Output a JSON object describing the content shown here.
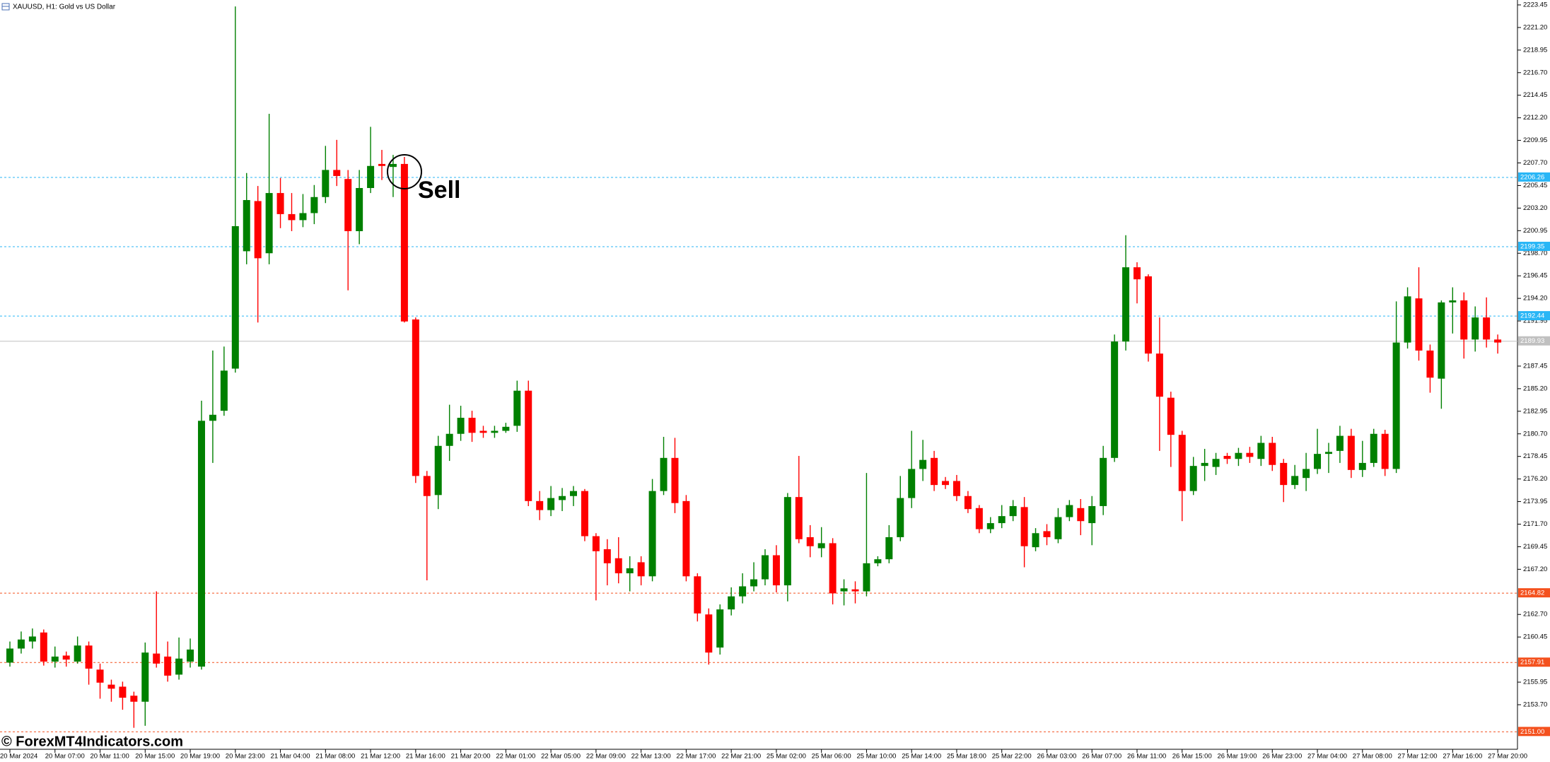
{
  "chart_data": {
    "type": "candlestick",
    "title": "XAUUSD, H1:  Gold vs US Dollar",
    "annotation": "Sell",
    "watermark": "© ForexMT4Indicators.com",
    "up_color": "#008000",
    "down_color": "#ff0000",
    "ylim": [
      2149.26,
      2223.94
    ],
    "yticks": [
      2223.45,
      {
        "value": 2221.2,
        "label": "2221.20"
      },
      2218.95,
      {
        "value": 2216.7,
        "label": "2216.70"
      },
      2214.45,
      {
        "value": 2212.2,
        "label": "2212.20"
      },
      2209.95,
      {
        "value": 2207.7,
        "label": "2207.70"
      },
      2205.45,
      {
        "value": 2203.2,
        "label": "2203.20"
      },
      2200.95,
      {
        "value": 2198.7,
        "label": "2198.70"
      },
      2196.45,
      {
        "value": 2194.2,
        "label": "2194.20"
      },
      2191.95,
      2187.45,
      {
        "value": 2185.2,
        "label": "2185.20"
      },
      2182.95,
      {
        "value": 2180.7,
        "label": "2180.70"
      },
      2178.45,
      {
        "value": 2176.2,
        "label": "2176.20"
      },
      2173.95,
      {
        "value": 2171.7,
        "label": "2171.70"
      },
      2169.45,
      {
        "value": 2167.2,
        "label": "2167.20"
      },
      {
        "value": 2162.7,
        "label": "2162.70"
      },
      2160.45,
      2155.95,
      {
        "value": 2153.7,
        "label": "2153.70"
      }
    ],
    "levels": [
      {
        "value": 2206.26,
        "color": "#29b6f6",
        "dashed": true
      },
      {
        "value": 2199.35,
        "color": "#29b6f6",
        "dashed": true
      },
      {
        "value": 2192.44,
        "color": "#29b6f6",
        "dashed": true
      },
      {
        "value": 2189.93,
        "color": "#c0c0c0",
        "dashed": false
      },
      {
        "value": 2164.82,
        "color": "#f4511e",
        "dashed": true
      },
      {
        "value": 2157.91,
        "color": "#f4511e",
        "dashed": true
      },
      {
        "value": 2151,
        "label": "2151.00",
        "color": "#f4511e",
        "dashed": true
      }
    ],
    "categories": [
      "20 Mar 2024",
      null,
      null,
      null,
      "20 Mar 07:00",
      null,
      null,
      null,
      "20 Mar 11:00",
      null,
      null,
      null,
      "20 Mar 15:00",
      null,
      null,
      null,
      "20 Mar 19:00",
      null,
      null,
      null,
      "20 Mar 23:00",
      null,
      null,
      null,
      "21 Mar 04:00",
      null,
      null,
      null,
      "21 Mar 08:00",
      null,
      null,
      null,
      "21 Mar 12:00",
      null,
      null,
      null,
      "21 Mar 16:00",
      null,
      null,
      null,
      "21 Mar 20:00",
      null,
      null,
      null,
      "22 Mar 01:00",
      null,
      null,
      null,
      "22 Mar 05:00",
      null,
      null,
      null,
      "22 Mar 09:00",
      null,
      null,
      null,
      "22 Mar 13:00",
      null,
      null,
      null,
      "22 Mar 17:00",
      null,
      null,
      null,
      "22 Mar 21:00",
      null,
      null,
      null,
      "25 Mar 02:00",
      null,
      null,
      null,
      "25 Mar 06:00",
      null,
      null,
      null,
      "25 Mar 10:00",
      null,
      null,
      null,
      "25 Mar 14:00",
      null,
      null,
      null,
      "25 Mar 18:00",
      null,
      null,
      null,
      "25 Mar 22:00",
      null,
      null,
      null,
      "26 Mar 03:00",
      null,
      null,
      null,
      "26 Mar 07:00",
      null,
      null,
      null,
      "26 Mar 11:00",
      null,
      null,
      null,
      "26 Mar 15:00",
      null,
      null,
      null,
      "26 Mar 19:00",
      null,
      null,
      null,
      "26 Mar 23:00",
      null,
      null,
      null,
      "27 Mar 04:00",
      null,
      null,
      null,
      "27 Mar 08:00",
      null,
      null,
      null,
      "27 Mar 12:00",
      null,
      null,
      null,
      "27 Mar 16:00",
      null,
      null,
      null,
      "27 Mar 20:00"
    ],
    "open": [
      2157.9,
      2159.3,
      2160,
      2160.9,
      2158,
      2158.6,
      2158,
      2159.6,
      2157.2,
      2155.7,
      2155.5,
      2154.6,
      2154,
      2158.8,
      2158.5,
      2156.7,
      2158,
      2157.5,
      2182,
      2183,
      2187.2,
      2198.9,
      2203.9,
      2198.7,
      2204.7,
      2202.6,
      2202,
      2202.7,
      2204.3,
      2207,
      2206.1,
      2200.9,
      2205.2,
      2207.6,
      2207.3,
      2207.6,
      2192.1,
      2176.5,
      2174.6,
      2179.5,
      2180.7,
      2182.3,
      2181,
      2180.8,
      2181,
      2181.5,
      2185,
      2174,
      2173.1,
      2174.1,
      2174.5,
      2175,
      2170.5,
      2169.2,
      2168.3,
      2166.8,
      2167.9,
      2166.5,
      2175,
      2178.3,
      2174,
      2166.5,
      2162.7,
      2159.4,
      2163.2,
      2164.5,
      2165.5,
      2166.2,
      2168.6,
      2165.6,
      2174.4,
      2170.4,
      2169.3,
      2169.8,
      2165,
      2165.2,
      2165,
      2167.8,
      2168.2,
      2170.4,
      2174.3,
      2177.2,
      2178.3,
      2176,
      2176,
      2174.5,
      2173.3,
      2171.2,
      2171.8,
      2172.5,
      2173.4,
      2169.4,
      2171,
      2170.2,
      2172.4,
      2173.3,
      2171.8,
      2173.5,
      2178.3,
      2189.9,
      2197.3,
      2196.4,
      2188.7,
      2184.3,
      2180.6,
      2175,
      2177.5,
      2177.4,
      2178.5,
      2178.2,
      2178.8,
      2178.2,
      2179.8,
      2177.8,
      2175.6,
      2176.3,
      2177.2,
      2178.7,
      2179,
      2180.5,
      2177.1,
      2177.8,
      2180.7,
      2177.2,
      2189.8,
      2194.2,
      2189,
      2186.2,
      2193.8,
      2194,
      2190.1,
      2192.3,
      2190.1
    ],
    "high": [
      2160,
      2161,
      2161.3,
      2161.2,
      2159.5,
      2159,
      2160.5,
      2160,
      2157.8,
      2156.2,
      2156,
      2155,
      2159.9,
      2165,
      2160,
      2160.4,
      2160.3,
      2184,
      2189,
      2189.4,
      2223.3,
      2206.7,
      2205.4,
      2212.6,
      2206.2,
      2204.7,
      2204.6,
      2205.5,
      2209.4,
      2210,
      2207,
      2207,
      2211.3,
      2209,
      2208.5,
      2208.3,
      2192.3,
      2177,
      2180.5,
      2183.6,
      2183.5,
      2183,
      2181.5,
      2181.5,
      2181.8,
      2186,
      2186,
      2175,
      2175.5,
      2175.3,
      2175.5,
      2175.2,
      2170.8,
      2170.2,
      2170.4,
      2168.5,
      2168.5,
      2176.2,
      2180.4,
      2180.3,
      2174.6,
      2166.8,
      2163.3,
      2163.7,
      2165.4,
      2166.8,
      2167.9,
      2169.2,
      2169.6,
      2174.8,
      2178.5,
      2171.6,
      2171.4,
      2170.3,
      2166.2,
      2166,
      2176.8,
      2168.5,
      2171.6,
      2176.5,
      2181,
      2180.1,
      2179,
      2176.4,
      2176.6,
      2175,
      2173.6,
      2172.4,
      2173.6,
      2174.1,
      2174.4,
      2171.3,
      2171.7,
      2173.3,
      2174.1,
      2174.2,
      2174.5,
      2179.5,
      2190.6,
      2200.5,
      2197.8,
      2196.6,
      2192.3,
      2184.9,
      2181,
      2178.4,
      2179.2,
      2178.8,
      2178.8,
      2179.3,
      2179.4,
      2180.5,
      2180.4,
      2178.2,
      2177.6,
      2178.8,
      2181.2,
      2179.8,
      2181.5,
      2181.2,
      2180,
      2181.2,
      2181.1,
      2193.9,
      2195.3,
      2197.3,
      2189.6,
      2194,
      2195.3,
      2194.8,
      2193.4,
      2194.3,
      2190.6
    ],
    "low": [
      2157.5,
      2158.8,
      2159.3,
      2157.6,
      2157.4,
      2157.5,
      2157.8,
      2155.7,
      2154.3,
      2154,
      2153.2,
      2151.4,
      2151.6,
      2157.4,
      2156,
      2156.2,
      2157.4,
      2157.2,
      2177.8,
      2182.5,
      2186.8,
      2197.6,
      2191.8,
      2197.6,
      2201.2,
      2200.9,
      2201.3,
      2201.6,
      2203.7,
      2205.4,
      2195,
      2199.6,
      2204.7,
      2206,
      2204.3,
      2191.8,
      2175.8,
      2166.1,
      2173.2,
      2178,
      2180,
      2179.9,
      2180.3,
      2180.3,
      2180.8,
      2180.9,
      2173.5,
      2172.1,
      2172.5,
      2173,
      2173.5,
      2170,
      2164.1,
      2165.6,
      2165.8,
      2165,
      2165.6,
      2166,
      2174.6,
      2172.8,
      2166,
      2162,
      2157.7,
      2158.7,
      2162.6,
      2163.8,
      2165,
      2165.6,
      2164.9,
      2164,
      2169.8,
      2168.4,
      2168.4,
      2163.7,
      2163.6,
      2163.8,
      2164.5,
      2167.5,
      2167.8,
      2170,
      2173.3,
      2176,
      2175,
      2175.2,
      2174,
      2172.8,
      2170.8,
      2170.8,
      2171.3,
      2172,
      2167.4,
      2169,
      2169.6,
      2169.8,
      2172,
      2170.6,
      2169.6,
      2172.6,
      2177.9,
      2189,
      2193.7,
      2187.9,
      2179,
      2177.4,
      2172,
      2174.6,
      2176,
      2176.6,
      2177.7,
      2177.5,
      2177.8,
      2177.5,
      2177,
      2173.9,
      2175.2,
      2175,
      2176.7,
      2176.8,
      2177.8,
      2176.3,
      2176.4,
      2177.4,
      2176.5,
      2176.8,
      2189.2,
      2188,
      2184.8,
      2183.2,
      2190.7,
      2188.2,
      2188.9,
      2189.3,
      2188.7
    ],
    "close": [
      2159.3,
      2160.2,
      2160.5,
      2158,
      2158.5,
      2158.2,
      2159.6,
      2157.3,
      2155.9,
      2155.3,
      2154.4,
      2154,
      2158.9,
      2157.8,
      2156.6,
      2158.3,
      2159.2,
      2182,
      2182.6,
      2187,
      2201.4,
      2204,
      2198.2,
      2204.7,
      2202.6,
      2202,
      2202.7,
      2204.3,
      2207,
      2206.4,
      2200.9,
      2205.2,
      2207.4,
      2207.4,
      2207.6,
      2191.9,
      2176.5,
      2174.5,
      2179.5,
      2180.7,
      2182.3,
      2180.8,
      2180.8,
      2181,
      2181.4,
      2185,
      2174,
      2173.1,
      2174.3,
      2174.5,
      2175,
      2170.5,
      2169,
      2167.8,
      2166.8,
      2167.3,
      2166.5,
      2175,
      2178.3,
      2173.8,
      2166.5,
      2162.8,
      2158.9,
      2163.2,
      2164.5,
      2165.5,
      2166.2,
      2168.6,
      2165.6,
      2174.4,
      2170.2,
      2169.5,
      2169.8,
      2164.8,
      2165.3,
      2165,
      2167.8,
      2168.2,
      2170.4,
      2174.3,
      2177.2,
      2178.1,
      2175.6,
      2175.6,
      2174.5,
      2173.2,
      2171.2,
      2171.8,
      2172.5,
      2173.5,
      2169.5,
      2170.8,
      2170.4,
      2172.4,
      2173.6,
      2172,
      2173.5,
      2178.3,
      2189.9,
      2197.3,
      2196.1,
      2188.7,
      2184.4,
      2180.6,
      2175,
      2177.5,
      2177.8,
      2178.2,
      2178.2,
      2178.8,
      2178.4,
      2179.8,
      2177.6,
      2175.6,
      2176.5,
      2177.2,
      2178.7,
      2178.9,
      2180.5,
      2177.1,
      2177.8,
      2180.7,
      2177.2,
      2189.8,
      2194.4,
      2189,
      2186.3,
      2193.8,
      2194,
      2190.1,
      2192.3,
      2190.1,
      2189.8
    ]
  }
}
